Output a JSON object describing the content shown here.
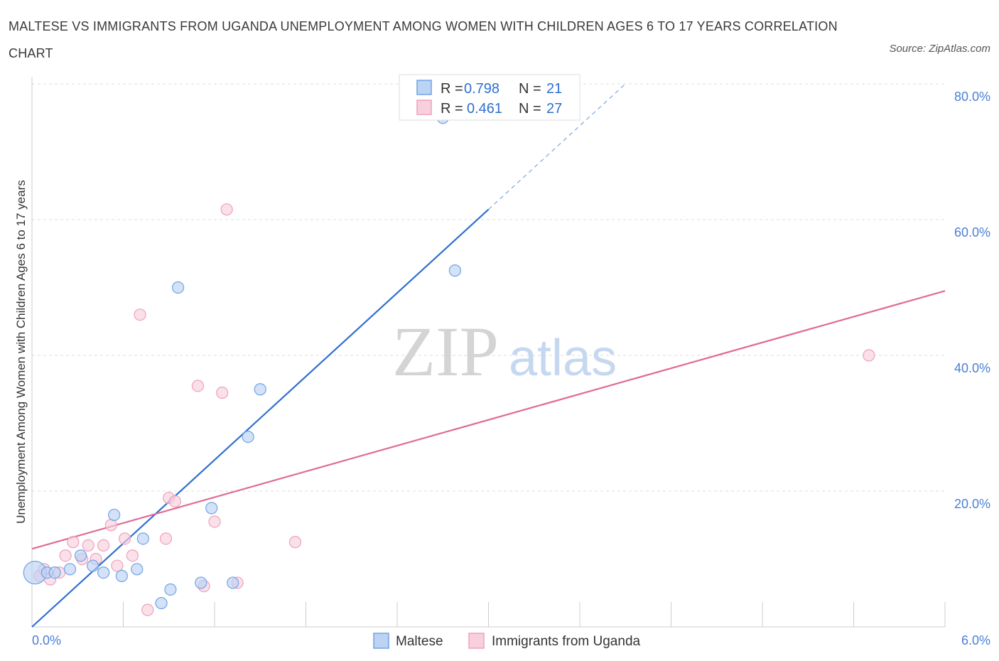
{
  "chart_data": {
    "type": "scatter",
    "title": "MALTESE VS IMMIGRANTS FROM UGANDA UNEMPLOYMENT AMONG WOMEN WITH CHILDREN AGES 6 TO 17 YEARS CORRELATION CHART",
    "source": "Source: ZipAtlas.com",
    "xlabel": "",
    "ylabel": "Unemployment Among Women with Children Ages 6 to 17 years",
    "xlim": [
      0,
      6
    ],
    "ylim": [
      0,
      80
    ],
    "x_tick_labels": {
      "min": "0.0%",
      "max": "6.0%"
    },
    "y_ticks": [
      {
        "value": 20,
        "label": "20.0%"
      },
      {
        "value": 40,
        "label": "40.0%"
      },
      {
        "value": 60,
        "label": "60.0%"
      },
      {
        "value": 80,
        "label": "80.0%"
      }
    ],
    "watermark": {
      "zip": "ZIP",
      "atlas": "atlas"
    },
    "series": [
      {
        "name": "Maltese",
        "color": "#6fa3e8",
        "fill": "#bcd3f3",
        "line_color": "#2f6fd0",
        "r_label": "R = ",
        "r_value": "0.798",
        "n_label": "N = ",
        "n_value": "21",
        "trend": {
          "x0": 0.0,
          "y0": 0.0,
          "x1": 3.0,
          "y1": 61.5,
          "dash_x1": 3.9,
          "dash_y1": 80.0
        },
        "points": [
          {
            "x": 0.02,
            "y": 8.0,
            "big": true
          },
          {
            "x": 0.1,
            "y": 8.0
          },
          {
            "x": 0.25,
            "y": 8.5
          },
          {
            "x": 0.32,
            "y": 10.5
          },
          {
            "x": 0.4,
            "y": 9.0
          },
          {
            "x": 0.47,
            "y": 8.0
          },
          {
            "x": 0.54,
            "y": 16.5
          },
          {
            "x": 0.59,
            "y": 7.5
          },
          {
            "x": 0.69,
            "y": 8.5
          },
          {
            "x": 0.73,
            "y": 13.0
          },
          {
            "x": 0.85,
            "y": 3.5
          },
          {
            "x": 0.91,
            "y": 5.5
          },
          {
            "x": 0.96,
            "y": 50.0
          },
          {
            "x": 1.11,
            "y": 6.5
          },
          {
            "x": 1.18,
            "y": 17.5
          },
          {
            "x": 1.32,
            "y": 6.5
          },
          {
            "x": 1.42,
            "y": 28.0
          },
          {
            "x": 1.5,
            "y": 35.0
          },
          {
            "x": 2.7,
            "y": 75.0
          },
          {
            "x": 2.78,
            "y": 52.5
          },
          {
            "x": 0.15,
            "y": 8.0
          }
        ]
      },
      {
        "name": "Immigrants from Uganda",
        "color": "#f0a0bd",
        "fill": "#f8cfdd",
        "line_color": "#e06a96",
        "r_label": "R = ",
        "r_value": "0.461",
        "n_label": "N = ",
        "n_value": "27",
        "trend": {
          "x0": 0.0,
          "y0": 11.5,
          "x1": 6.0,
          "y1": 49.5
        },
        "points": [
          {
            "x": 0.05,
            "y": 7.5
          },
          {
            "x": 0.12,
            "y": 7.0
          },
          {
            "x": 0.18,
            "y": 8.0
          },
          {
            "x": 0.22,
            "y": 10.5
          },
          {
            "x": 0.27,
            "y": 12.5
          },
          {
            "x": 0.33,
            "y": 10.0
          },
          {
            "x": 0.37,
            "y": 12.0
          },
          {
            "x": 0.42,
            "y": 10.0
          },
          {
            "x": 0.47,
            "y": 12.0
          },
          {
            "x": 0.52,
            "y": 15.0
          },
          {
            "x": 0.56,
            "y": 9.0
          },
          {
            "x": 0.61,
            "y": 13.0
          },
          {
            "x": 0.66,
            "y": 10.5
          },
          {
            "x": 0.71,
            "y": 46.0
          },
          {
            "x": 0.76,
            "y": 2.5
          },
          {
            "x": 0.88,
            "y": 13.0
          },
          {
            "x": 0.9,
            "y": 19.0
          },
          {
            "x": 0.94,
            "y": 18.5
          },
          {
            "x": 1.09,
            "y": 35.5
          },
          {
            "x": 1.13,
            "y": 6.0
          },
          {
            "x": 1.2,
            "y": 15.5
          },
          {
            "x": 1.25,
            "y": 34.5
          },
          {
            "x": 1.28,
            "y": 61.5
          },
          {
            "x": 1.35,
            "y": 6.5
          },
          {
            "x": 1.73,
            "y": 12.5
          },
          {
            "x": 5.5,
            "y": 40.0
          },
          {
            "x": 0.08,
            "y": 8.5
          }
        ]
      }
    ],
    "legend": {
      "placement": "top-center"
    },
    "bottom_legend": [
      "Maltese",
      "Immigrants from Uganda"
    ]
  }
}
